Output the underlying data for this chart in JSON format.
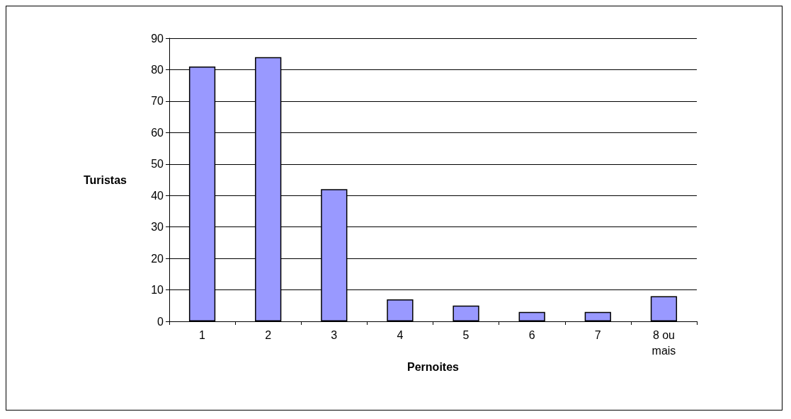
{
  "chart_data": {
    "type": "bar",
    "xlabel": "Pernoites",
    "ylabel": "Turistas",
    "categories": [
      "1",
      "2",
      "3",
      "4",
      "5",
      "6",
      "7",
      "8 ou mais"
    ],
    "values": [
      81,
      84,
      42,
      7,
      5,
      3,
      3,
      8
    ],
    "color": "#9999ff",
    "ylim": [
      0,
      90
    ],
    "yticks": [
      0,
      10,
      20,
      30,
      40,
      50,
      60,
      70,
      80,
      90
    ],
    "grid": "y"
  }
}
